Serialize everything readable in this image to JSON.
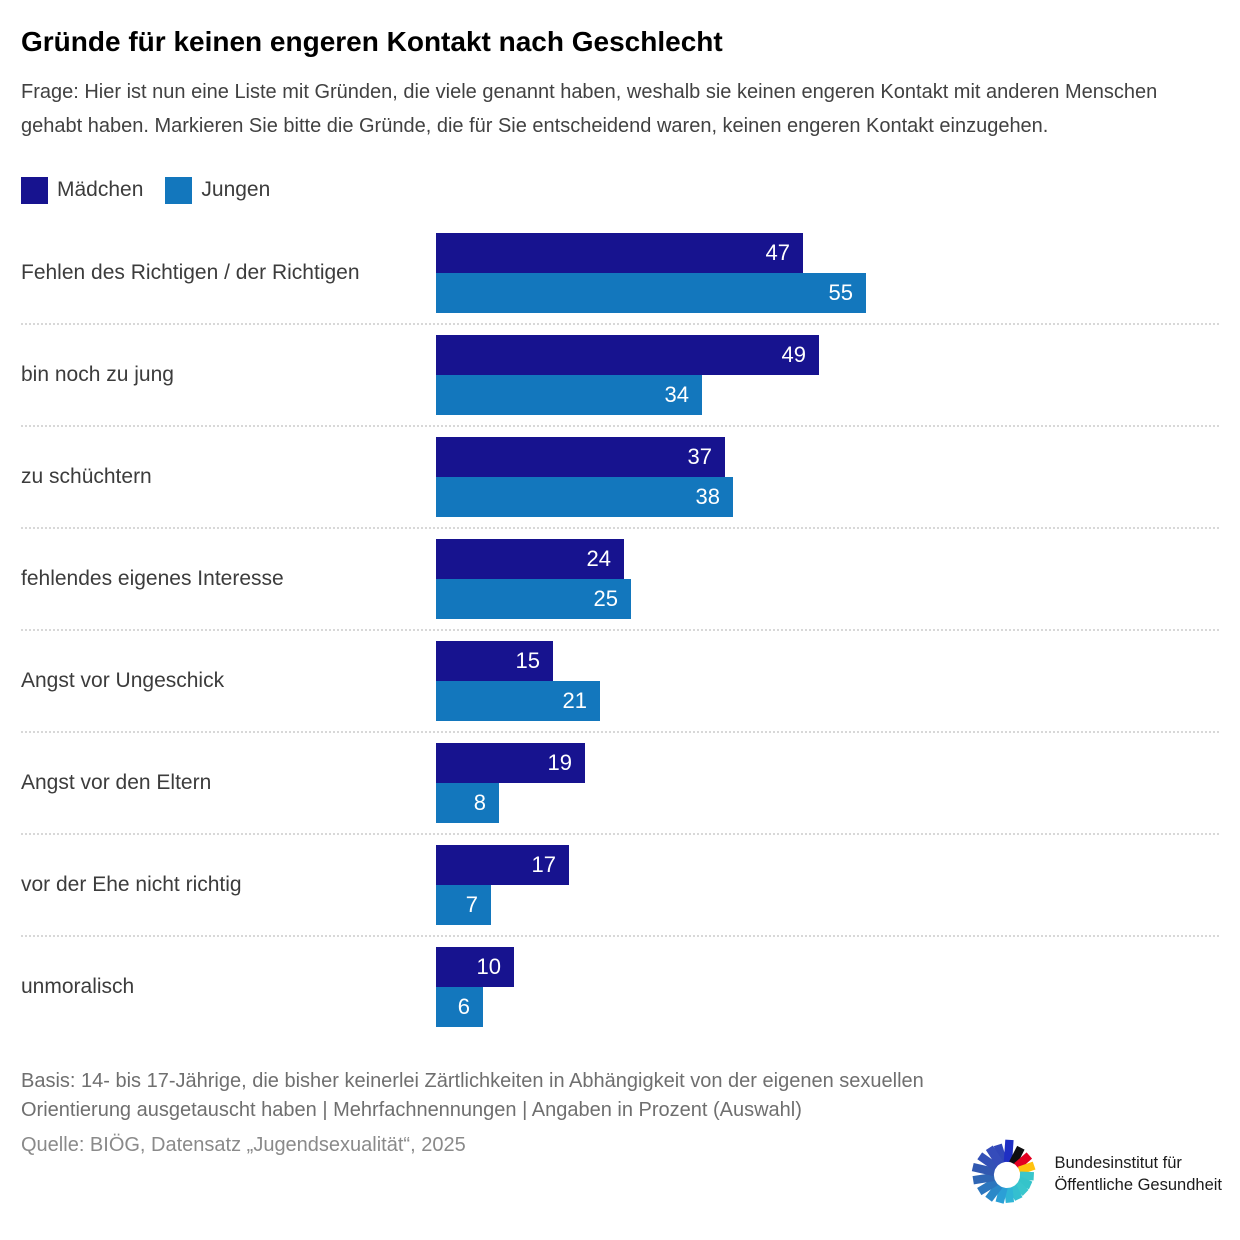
{
  "header": {
    "title": "Gründe für keinen engeren Kontakt nach Geschlecht",
    "subtitle": "Frage: Hier ist nun eine Liste mit Gründen, die viele genannt haben, weshalb sie keinen engeren Kontakt mit anderen Menschen gehabt haben. Markieren Sie bitte die Gründe, die für Sie entscheidend waren, keinen engeren Kontakt einzugehen."
  },
  "legend": [
    {
      "label": "Mädchen",
      "color": "#17138F"
    },
    {
      "label": "Jungen",
      "color": "#1377BD"
    }
  ],
  "chart_data": {
    "type": "bar",
    "orientation": "horizontal",
    "unit": "Prozent",
    "xlim": [
      0,
      55
    ],
    "categories": [
      "Fehlen des Richtigen / der Richtigen",
      "bin noch zu jung",
      "zu schüchtern",
      "fehlendes eigenes Interesse",
      "Angst vor Ungeschick",
      "Angst vor den Eltern",
      "vor der Ehe nicht richtig",
      "unmoralisch"
    ],
    "series": [
      {
        "name": "Mädchen",
        "color": "#17138F",
        "values": [
          47,
          49,
          37,
          24,
          15,
          19,
          17,
          10
        ]
      },
      {
        "name": "Jungen",
        "color": "#1377BD",
        "values": [
          55,
          34,
          38,
          25,
          21,
          8,
          7,
          6
        ]
      }
    ]
  },
  "footer": {
    "basis": "Basis: 14- bis 17-Jährige, die bisher keinerlei Zärtlichkeiten in Abhängigkeit von der eigenen sexuellen Orientierung ausgetauscht haben | Mehrfachnennungen  |  Angaben in Prozent (Auswahl)",
    "source": "Quelle: BIÖG, Datensatz „Jugendsexualität“, 2025"
  },
  "brand": {
    "line1": "Bundesinstitut für",
    "line2": "Öffentliche Gesundheit"
  }
}
